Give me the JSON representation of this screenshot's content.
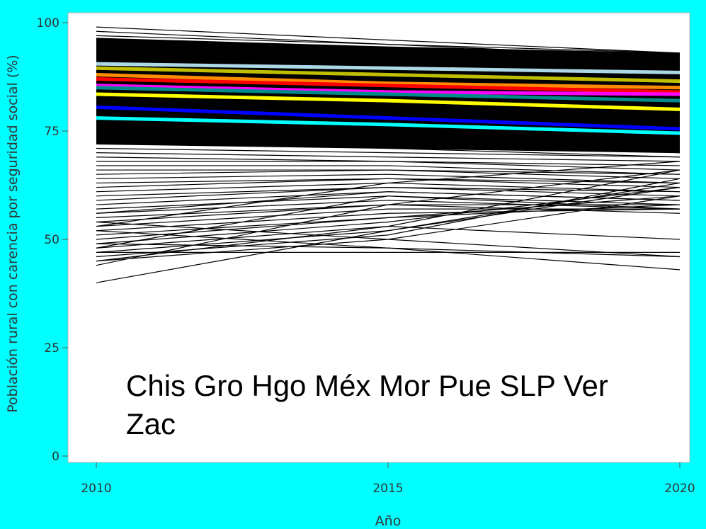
{
  "chart_data": {
    "type": "line",
    "x": [
      2010,
      2015,
      2020
    ],
    "xlabel": "Año",
    "ylabel": "Población rural con carencia por seguridad social (%)",
    "xlim": [
      2010,
      2020
    ],
    "ylim": [
      0,
      100
    ],
    "x_ticks": [
      "2010",
      "2015",
      "2020"
    ],
    "y_ticks": [
      "0",
      "25",
      "50",
      "75",
      "100"
    ],
    "grid": false,
    "annotation": "Chis Gro Hgo Méx Mor Pue SLP Ver Zac",
    "background_series_color": "#000000",
    "background_series": [
      [
        99,
        96,
        93
      ],
      [
        98,
        95,
        92
      ],
      [
        97,
        95,
        93
      ],
      [
        96,
        94,
        92
      ],
      [
        95,
        93,
        91
      ],
      [
        94,
        92,
        90
      ],
      [
        93,
        91,
        89
      ],
      [
        92,
        90,
        88
      ],
      [
        91,
        89,
        87
      ],
      [
        90,
        88,
        86
      ],
      [
        89,
        87,
        85
      ],
      [
        88,
        86,
        84
      ],
      [
        87,
        85,
        83
      ],
      [
        86,
        84,
        82
      ],
      [
        85,
        83,
        81
      ],
      [
        84,
        82,
        80
      ],
      [
        83,
        81,
        79
      ],
      [
        82,
        80,
        78
      ],
      [
        81,
        79,
        77
      ],
      [
        80,
        78,
        76
      ],
      [
        79,
        77,
        75
      ],
      [
        78,
        76,
        74
      ],
      [
        77,
        75,
        73
      ],
      [
        76,
        74,
        72
      ],
      [
        75,
        73,
        71
      ],
      [
        74,
        72,
        70
      ],
      [
        73,
        71,
        69
      ],
      [
        72,
        71,
        70
      ],
      [
        71,
        70,
        69
      ],
      [
        70,
        69,
        68
      ],
      [
        69,
        68,
        67
      ],
      [
        68,
        68,
        66
      ],
      [
        67,
        67,
        65
      ],
      [
        66,
        66,
        64
      ],
      [
        65,
        66,
        65
      ],
      [
        64,
        65,
        63
      ],
      [
        63,
        64,
        62
      ],
      [
        62,
        64,
        63
      ],
      [
        61,
        63,
        61
      ],
      [
        60,
        62,
        60
      ],
      [
        59,
        62,
        61
      ],
      [
        58,
        61,
        59
      ],
      [
        57,
        60,
        58
      ],
      [
        56,
        59,
        57
      ],
      [
        55,
        58,
        58
      ],
      [
        54,
        58,
        56
      ],
      [
        53,
        57,
        57
      ],
      [
        52,
        56,
        57
      ],
      [
        51,
        55,
        60
      ],
      [
        50,
        55,
        58
      ],
      [
        49,
        54,
        62
      ],
      [
        48,
        53,
        66
      ],
      [
        47,
        52,
        62
      ],
      [
        46,
        51,
        64
      ],
      [
        45,
        50,
        60
      ],
      [
        49,
        48,
        46
      ],
      [
        47,
        47,
        47
      ],
      [
        52,
        48,
        43
      ],
      [
        54,
        50,
        46
      ],
      [
        45,
        53,
        50
      ],
      [
        40,
        52,
        63
      ],
      [
        48,
        60,
        57
      ],
      [
        44,
        58,
        66
      ],
      [
        53,
        63,
        68
      ],
      [
        56,
        61,
        59
      ]
    ],
    "series": [
      {
        "color": "#ADD8E6",
        "values": [
          90.5,
          89.5,
          88.5
        ]
      },
      {
        "color": "#BFBF00",
        "values": [
          89.5,
          88.0,
          86.5
        ]
      },
      {
        "color": "#FF8C00",
        "values": [
          88.0,
          86.0,
          85.0
        ]
      },
      {
        "color": "#FF0000",
        "values": [
          87.0,
          85.5,
          84.0
        ]
      },
      {
        "color": "#FF00FF",
        "values": [
          85.5,
          84.0,
          83.5
        ]
      },
      {
        "color": "#008B8B",
        "values": [
          85.0,
          83.5,
          82.0
        ]
      },
      {
        "color": "#FFFF00",
        "values": [
          83.5,
          82.0,
          80.0
        ]
      },
      {
        "color": "#0000FF",
        "values": [
          80.5,
          78.0,
          75.5
        ]
      },
      {
        "color": "#00FFFF",
        "values": [
          78.0,
          76.5,
          74.5
        ]
      }
    ]
  }
}
